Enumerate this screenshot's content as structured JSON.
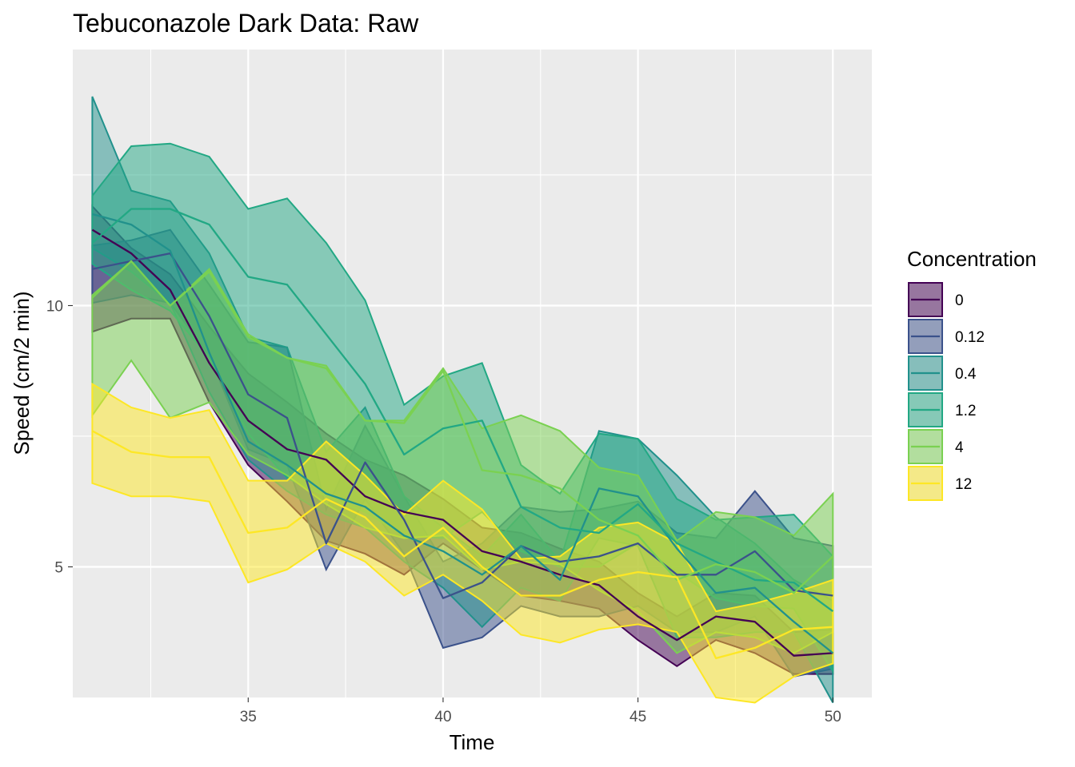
{
  "chart_data": {
    "type": "area",
    "title": "Tebuconazole Dark Data: Raw",
    "xlabel": "Time",
    "ylabel": "Speed (cm/2 min)",
    "xlim": [
      30.5,
      51.0
    ],
    "ylim": [
      2.5,
      14.9
    ],
    "x_ticks": [
      35,
      40,
      45,
      50
    ],
    "x_tick_labels": [
      "35",
      "40",
      "45",
      "50"
    ],
    "y_ticks": [
      5,
      10
    ],
    "y_tick_labels": [
      "5",
      "10"
    ],
    "grid": true,
    "legend": {
      "title": "Concentration",
      "position": "right"
    },
    "x": [
      31,
      32,
      33,
      34,
      35,
      36,
      37,
      38,
      39,
      40,
      41,
      42,
      43,
      44,
      45,
      46,
      47,
      48,
      49,
      50
    ],
    "series": [
      {
        "name": "0",
        "color": "#440154",
        "mean": [
          11.45,
          11.0,
          10.3,
          8.9,
          7.8,
          7.25,
          7.05,
          6.35,
          6.05,
          5.9,
          5.3,
          5.1,
          4.85,
          4.65,
          4.05,
          3.6,
          4.05,
          3.95,
          3.3,
          3.35
        ],
        "lower": [
          9.5,
          9.75,
          9.75,
          8.15,
          6.95,
          6.25,
          5.5,
          5.25,
          4.85,
          5.45,
          4.95,
          4.45,
          4.35,
          4.2,
          3.6,
          3.1,
          3.6,
          3.35,
          2.95,
          2.95
        ],
        "upper": [
          11.9,
          11.1,
          10.6,
          9.6,
          8.7,
          8.15,
          7.55,
          7.05,
          6.75,
          6.3,
          5.75,
          5.65,
          5.35,
          5.1,
          4.5,
          4.05,
          4.5,
          4.45,
          3.75,
          3.8
        ]
      },
      {
        "name": "0.12",
        "color": "#3b528b",
        "mean": [
          10.7,
          10.85,
          11.0,
          9.8,
          8.3,
          7.85,
          5.45,
          7.0,
          5.9,
          4.4,
          4.7,
          5.4,
          5.1,
          5.2,
          5.45,
          4.85,
          4.85,
          5.3,
          4.55,
          4.45
        ],
        "lower": [
          10.05,
          10.2,
          10.05,
          9.05,
          7.25,
          6.95,
          4.95,
          6.3,
          5.25,
          3.45,
          3.65,
          4.25,
          4.05,
          4.05,
          4.25,
          3.75,
          3.75,
          4.05,
          2.9,
          3.05
        ],
        "upper": [
          11.15,
          11.25,
          11.45,
          10.4,
          9.3,
          9.2,
          6.1,
          7.7,
          6.35,
          5.1,
          5.45,
          6.15,
          6.05,
          6.1,
          6.25,
          5.65,
          5.55,
          6.45,
          5.55,
          5.4
        ]
      },
      {
        "name": "0.4",
        "color": "#21918c",
        "mean": [
          11.75,
          11.55,
          11.05,
          9.1,
          7.4,
          6.95,
          6.4,
          6.15,
          5.6,
          5.3,
          4.85,
          5.4,
          4.75,
          6.5,
          6.35,
          5.35,
          4.5,
          4.6,
          3.95,
          3.35
        ],
        "lower": [
          11.1,
          10.65,
          10.05,
          8.35,
          7.05,
          6.45,
          6.0,
          5.75,
          5.1,
          4.6,
          3.85,
          4.6,
          4.35,
          5.55,
          5.4,
          3.65,
          3.65,
          3.75,
          3.75,
          2.4
        ],
        "upper": [
          14.0,
          12.2,
          12.0,
          11.0,
          9.4,
          9.2,
          7.2,
          8.05,
          6.35,
          5.75,
          5.2,
          6.0,
          5.1,
          7.6,
          7.45,
          6.75,
          5.95,
          5.45,
          4.75,
          4.35
        ]
      },
      {
        "name": "1.2",
        "color": "#22a884",
        "mean": [
          11.2,
          11.85,
          11.85,
          11.55,
          10.55,
          10.4,
          9.45,
          8.5,
          7.15,
          7.65,
          7.8,
          6.15,
          5.75,
          5.65,
          6.2,
          5.45,
          5.1,
          4.75,
          4.7,
          4.15
        ],
        "lower": [
          10.8,
          10.3,
          9.9,
          9.0,
          7.55,
          6.7,
          6.35,
          6.05,
          5.6,
          5.55,
          6.05,
          5.3,
          5.0,
          5.0,
          5.45,
          4.9,
          4.4,
          4.25,
          4.2,
          3.0
        ],
        "upper": [
          12.1,
          13.05,
          13.1,
          12.85,
          11.85,
          12.05,
          11.2,
          10.1,
          8.1,
          8.65,
          8.9,
          6.95,
          6.4,
          7.55,
          7.45,
          6.3,
          5.9,
          5.95,
          6.0,
          5.2
        ]
      },
      {
        "name": "4",
        "color": "#7ad151",
        "mean": [
          10.15,
          10.85,
          10.0,
          10.65,
          9.4,
          9.0,
          8.8,
          7.8,
          7.75,
          8.75,
          6.85,
          6.75,
          6.5,
          5.9,
          5.6,
          4.75,
          5.05,
          4.9,
          4.5,
          5.2
        ],
        "lower": [
          7.9,
          8.95,
          7.85,
          8.15,
          7.15,
          6.75,
          6.2,
          5.75,
          5.55,
          5.6,
          4.95,
          5.1,
          5.05,
          4.55,
          4.15,
          3.35,
          3.75,
          3.65,
          3.35,
          3.75
        ],
        "upper": [
          10.2,
          10.85,
          10.0,
          10.7,
          9.45,
          9.0,
          8.85,
          7.8,
          7.8,
          8.8,
          7.65,
          7.9,
          7.6,
          6.9,
          6.75,
          5.5,
          6.05,
          5.95,
          5.6,
          6.4
        ]
      },
      {
        "name": "12",
        "color": "#fde725",
        "mean": [
          7.6,
          7.2,
          7.1,
          7.1,
          5.65,
          5.75,
          6.3,
          5.95,
          5.2,
          5.75,
          5.0,
          4.45,
          4.45,
          4.75,
          4.9,
          4.8,
          3.25,
          3.45,
          3.8,
          3.85
        ],
        "lower": [
          6.6,
          6.35,
          6.35,
          6.25,
          4.7,
          4.95,
          5.45,
          5.1,
          4.45,
          4.85,
          4.35,
          3.7,
          3.55,
          3.8,
          3.9,
          3.75,
          2.5,
          2.4,
          2.9,
          3.15
        ],
        "upper": [
          8.5,
          8.05,
          7.85,
          8.0,
          6.65,
          6.65,
          7.4,
          6.75,
          6.0,
          6.65,
          6.1,
          5.15,
          5.2,
          5.75,
          5.85,
          5.45,
          4.15,
          4.3,
          4.5,
          4.75
        ]
      }
    ]
  }
}
